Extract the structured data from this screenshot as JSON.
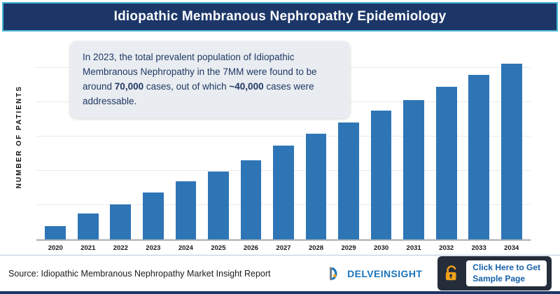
{
  "header": {
    "title": "Idiopathic Membranous Nephropathy Epidemiology"
  },
  "callout": {
    "part1": "In 2023, the total prevalent population of Idiopathic Membranous Nephropathy in the 7MM were found to be around ",
    "bold1": "70,000",
    "part2": " cases, out of which ",
    "bold2": "~40,000",
    "part3": " cases were addressable."
  },
  "chart_data": {
    "type": "bar",
    "title": "Idiopathic Membranous Nephropathy Epidemiology",
    "categories": [
      "2020",
      "2021",
      "2022",
      "2023",
      "2024",
      "2025",
      "2026",
      "2027",
      "2028",
      "2029",
      "2030",
      "2031",
      "2032",
      "2033",
      "2034"
    ],
    "values": [
      20000,
      38000,
      52000,
      70000,
      86000,
      101000,
      117000,
      139000,
      157000,
      173000,
      191000,
      207000,
      226000,
      244000,
      261000
    ],
    "xlabel": "",
    "ylabel": "NUMBER OF PATIENTS",
    "ylim": [
      0,
      300000
    ],
    "grid": true,
    "legend": false,
    "annotation": "In 2023, the total prevalent population of Idiopathic Membranous Nephropathy in the 7MM were found to be around 70,000 cases, out of which ~40,000 cases were addressable."
  },
  "footer": {
    "source": "Source: Idiopathic Membranous Nephropathy Market Insight Report",
    "logo_text": "DELVEINSIGHT",
    "cta_line1": "Click Here to Get",
    "cta_line2": "Sample Page"
  },
  "icons": {
    "cta": "unlocked-padlock-icon",
    "logo": "delveinsight-d-icon"
  },
  "colors": {
    "banner-bg": "#1c3668",
    "banner-border": "#49b6d2",
    "bar": "#2e75b6",
    "callout-bg": "#e9edf1",
    "callout-text": "#1f3864",
    "cta-bg": "#242d39",
    "cta-text": "#1460a8",
    "lock": "#f0a11c",
    "logo-blue": "#1b75bb",
    "logo-orange": "#f0a11c",
    "accent-line": "#1c3668"
  }
}
